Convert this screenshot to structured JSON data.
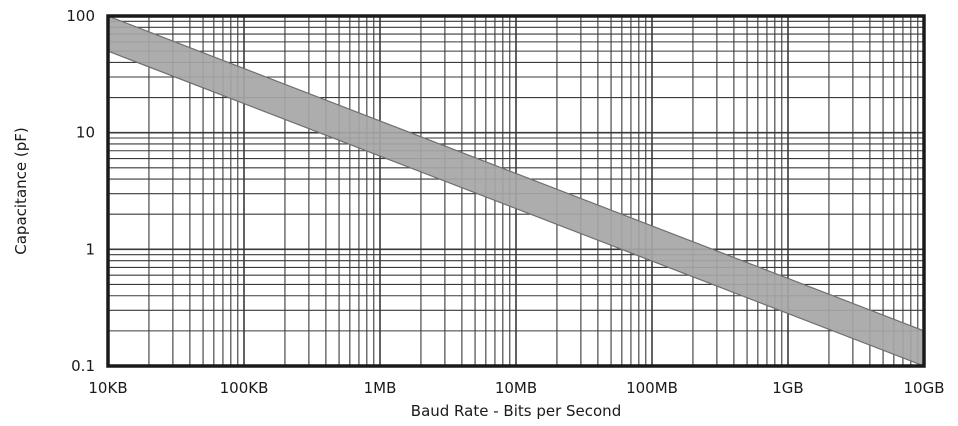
{
  "chart_data": {
    "type": "area",
    "title": "",
    "xlabel": "Baud Rate - Bits per Second",
    "ylabel": "Capacitance (pF)",
    "x_scale": "log",
    "y_scale": "log",
    "xlim": [
      10000,
      10000000000
    ],
    "ylim": [
      0.1,
      100
    ],
    "grid": true,
    "legend": "none",
    "x_ticks": [
      {
        "value": 10000,
        "label": "10KB"
      },
      {
        "value": 100000,
        "label": "100KB"
      },
      {
        "value": 1000000,
        "label": "1MB"
      },
      {
        "value": 10000000,
        "label": "10MB"
      },
      {
        "value": 100000000,
        "label": "100MB"
      },
      {
        "value": 1000000000,
        "label": "1GB"
      },
      {
        "value": 10000000000,
        "label": "10GB"
      }
    ],
    "y_ticks": [
      {
        "value": 0.1,
        "label": "0.1"
      },
      {
        "value": 1,
        "label": "1"
      },
      {
        "value": 10,
        "label": "10"
      },
      {
        "value": 100,
        "label": "100"
      }
    ],
    "series": [
      {
        "upper": {
          "x": [
            10000,
            10000000000
          ],
          "y": [
            100,
            0.2
          ]
        },
        "lower": {
          "x": [
            10000,
            10000000000
          ],
          "y": [
            50,
            0.1
          ]
        }
      }
    ],
    "colors": {
      "band_fill": "#a6a6a6",
      "band_edge": "#6e6e6e",
      "grid": "#3a3a3a",
      "frame": "#1a1a1a"
    }
  }
}
